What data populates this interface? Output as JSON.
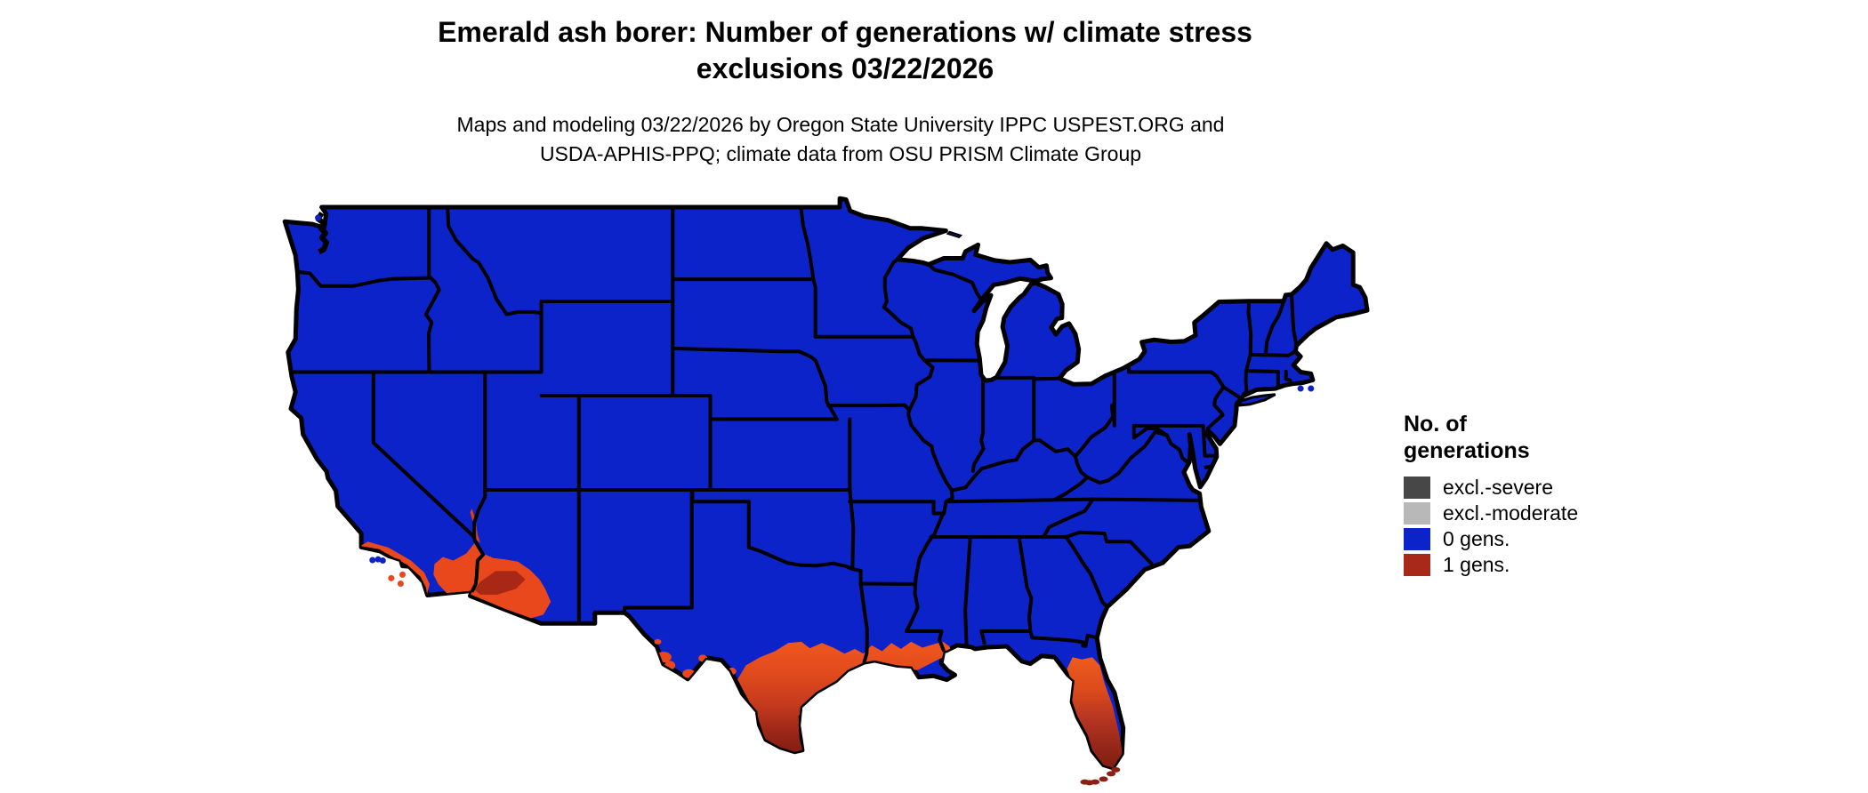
{
  "title": {
    "line1": "Emerald ash borer: Number of generations w/ climate stress",
    "line2": "exclusions 03/22/2026"
  },
  "subtitle": {
    "line1": "Maps and modeling 03/22/2026 by Oregon State University IPPC USPEST.ORG and",
    "line2": "USDA-APHIS-PPQ; climate data from OSU PRISM Climate Group"
  },
  "legend": {
    "title": "No. of generations",
    "items": [
      {
        "label": "excl.-severe",
        "color": "#474747"
      },
      {
        "label": "excl.-moderate",
        "color": "#B8B8B8"
      },
      {
        "label": "0 gens.",
        "color": "#0B23C8"
      },
      {
        "label": "1 gens.",
        "color": "#A8281A"
      }
    ]
  },
  "map": {
    "background": "#FFFFFF",
    "border_color": "#000000",
    "zero_gen_color": "#0B23C8",
    "one_gen_bright": "#E8481C",
    "one_gen_core": "#A82815",
    "one_gen_darkest": "#7A1A12",
    "river_valley_color": "#D84018",
    "keys_color": "#8E1F12",
    "texas_gradient": [
      "#F2581F",
      "#E04A1C",
      "#C53A1E",
      "#9C2717",
      "#7A1A12"
    ],
    "florida_gradient": [
      "#F05C1E",
      "#DA4A1C",
      "#B53422",
      "#942718",
      "#7E1B10"
    ],
    "zero_gen_region": "remainder of continental United States",
    "one_gen_regions": [
      "southern Texas",
      "Gulf Coast of Louisiana",
      "central and southern Florida",
      "Florida Keys",
      "southern California coast",
      "southeastern California desert",
      "southwestern Arizona (Phoenix-Yuma-Tucson)",
      "lower Colorado River valley",
      "Big Bend region of Texas"
    ]
  }
}
